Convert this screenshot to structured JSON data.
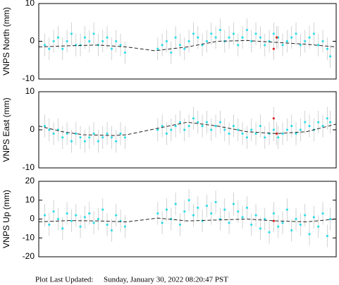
{
  "chart_data": [
    {
      "type": "scatter",
      "ylabel": "VNPS North (mm)",
      "xlim": [
        0,
        100
      ],
      "ylim": [
        -10,
        10
      ],
      "yticks": [
        -10,
        0,
        10
      ],
      "series": [
        {
          "color": "#33dde8",
          "error": 3,
          "x": [
            2,
            3.5,
            5,
            6.5,
            8,
            9.5,
            11,
            12.5,
            14,
            15.5,
            17,
            18.5,
            20,
            21.5,
            23,
            24.5,
            26,
            27.5,
            29,
            40,
            41.5,
            43,
            44.5,
            46,
            47.5,
            49,
            50.5,
            52,
            53.5,
            55,
            56.5,
            58,
            59.5,
            61,
            62.5,
            64,
            65.5,
            67,
            68.5,
            70,
            71.5,
            73,
            74.5,
            76,
            77.5,
            79,
            80.5,
            82,
            83.5,
            85,
            86.5,
            88,
            89.5,
            91,
            92.5,
            94,
            95.5,
            97,
            98
          ],
          "values": [
            -1,
            -2,
            0,
            1,
            -2,
            0,
            2,
            -1,
            -1,
            1,
            0,
            2,
            -1,
            0,
            1,
            -2,
            0,
            -1,
            -3,
            -2,
            -1,
            0,
            -3,
            1,
            -1,
            -2,
            0,
            2,
            1,
            -1,
            0,
            2,
            1,
            3,
            0,
            1,
            2,
            -1,
            1,
            3,
            0,
            2,
            1,
            -1,
            0,
            2,
            1,
            -1,
            0,
            1,
            2,
            -1,
            0,
            1,
            2,
            -1,
            0,
            -2,
            -4
          ]
        },
        {
          "color": "#e02020",
          "error": 3,
          "x": [
            79,
            80
          ],
          "values": [
            -2,
            1
          ]
        },
        {
          "type": "line",
          "color": "#222222",
          "x": [
            0,
            10,
            20,
            29.5,
            39,
            50,
            60,
            70,
            80,
            90,
            100
          ],
          "values": [
            -1.5,
            -1.2,
            -1,
            -1.5,
            -2.5,
            -1.5,
            0,
            0.2,
            -0.3,
            -0.8,
            -1.5
          ]
        }
      ]
    },
    {
      "type": "scatter",
      "ylabel": "VNPS East (mm)",
      "xlim": [
        0,
        100
      ],
      "ylim": [
        -10,
        10
      ],
      "yticks": [
        -10,
        0,
        10
      ],
      "series": [
        {
          "color": "#33dde8",
          "error": 3,
          "x": [
            2,
            3.5,
            5,
            6.5,
            8,
            9.5,
            11,
            12.5,
            14,
            15.5,
            17,
            18.5,
            20,
            21.5,
            23,
            24.5,
            26,
            27.5,
            29,
            40,
            41.5,
            43,
            44.5,
            46,
            47.5,
            49,
            50.5,
            52,
            53.5,
            55,
            56.5,
            58,
            59.5,
            61,
            62.5,
            64,
            65.5,
            67,
            68.5,
            70,
            71.5,
            73,
            74.5,
            76,
            77.5,
            79,
            80.5,
            82,
            83.5,
            85,
            86.5,
            88,
            89.5,
            91,
            92.5,
            94,
            95.5,
            97,
            98
          ],
          "values": [
            1,
            0,
            -1,
            0,
            -2,
            -1,
            -3,
            -1,
            -2,
            -3,
            -2,
            -1,
            -3,
            -2,
            -1,
            -2,
            -3,
            -1,
            -2,
            0,
            1,
            -1,
            0,
            1,
            2,
            0,
            1,
            3,
            2,
            1,
            2,
            0,
            1,
            2,
            0,
            -1,
            1,
            0,
            -1,
            -2,
            0,
            -1,
            1,
            -2,
            -1,
            0,
            -2,
            -1,
            0,
            1,
            -1,
            0,
            2,
            1,
            0,
            2,
            1,
            3,
            2
          ]
        },
        {
          "color": "#e02020",
          "error": 3,
          "x": [
            79,
            80
          ],
          "values": [
            3,
            -1
          ]
        },
        {
          "type": "line",
          "color": "#222222",
          "x": [
            0,
            8,
            15,
            25,
            29.5,
            50,
            60,
            70,
            80,
            90,
            100
          ],
          "values": [
            1,
            -0.5,
            -1.3,
            -1.5,
            -1.3,
            2,
            1,
            -0.5,
            -1,
            -0.5,
            1.5
          ]
        }
      ]
    },
    {
      "type": "scatter",
      "ylabel": "VNPS Up (mm)",
      "xlim": [
        0,
        100
      ],
      "ylim": [
        -20,
        20
      ],
      "yticks": [
        -20,
        -10,
        0,
        10,
        20
      ],
      "series": [
        {
          "color": "#33dde8",
          "error": 6,
          "x": [
            2,
            3.5,
            5,
            6.5,
            8,
            9.5,
            11,
            12.5,
            14,
            15.5,
            17,
            18.5,
            20,
            21.5,
            23,
            24.5,
            26,
            27.5,
            29,
            40,
            41.5,
            43,
            44.5,
            46,
            47.5,
            49,
            50.5,
            52,
            53.5,
            55,
            56.5,
            58,
            59.5,
            61,
            62.5,
            64,
            65.5,
            67,
            68.5,
            70,
            71.5,
            73,
            74.5,
            76,
            77.5,
            79,
            80.5,
            82,
            83.5,
            85,
            86.5,
            88,
            89.5,
            91,
            92.5,
            94,
            95.5,
            97,
            98
          ],
          "values": [
            2,
            -3,
            4,
            0,
            -5,
            3,
            -1,
            2,
            -4,
            1,
            3,
            -2,
            0,
            5,
            -3,
            -6,
            2,
            -1,
            -4,
            3,
            -2,
            5,
            0,
            8,
            -3,
            4,
            10,
            2,
            6,
            -1,
            7,
            3,
            9,
            0,
            5,
            -2,
            8,
            4,
            1,
            6,
            -3,
            2,
            -5,
            0,
            -7,
            3,
            -4,
            -2,
            5,
            -6,
            0,
            -3,
            2,
            -8,
            1,
            -4,
            3,
            -9,
            0
          ]
        },
        {
          "color": "#e02020",
          "error": 6,
          "x": [
            79
          ],
          "values": [
            -1
          ]
        },
        {
          "type": "line",
          "color": "#222222",
          "x": [
            0,
            10,
            20,
            29.5,
            40,
            50,
            60,
            70,
            80,
            90,
            100
          ],
          "values": [
            -1.5,
            -0.8,
            -1,
            -1.5,
            0.5,
            -1,
            -0.5,
            0,
            -1,
            -1.5,
            0
          ]
        }
      ]
    }
  ],
  "footer": {
    "label": "Plot Last Updated:",
    "value": "Sunday, January 30, 2022 08:20:47 PST"
  }
}
